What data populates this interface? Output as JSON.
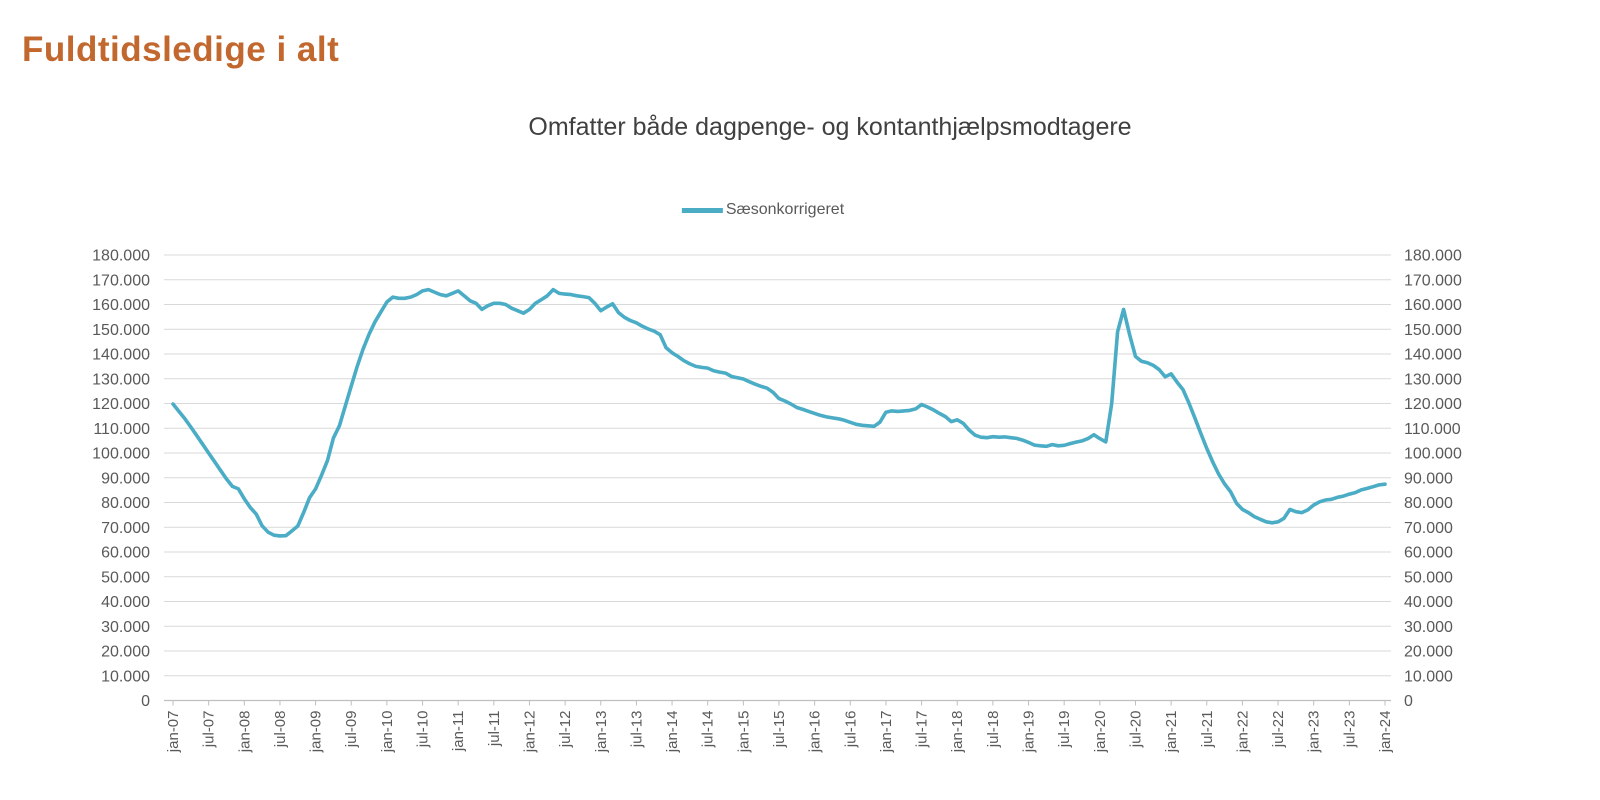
{
  "page": {
    "title": "Fuldtidsledige i alt"
  },
  "legend": {
    "label": "Sæsonkorrigeret"
  },
  "colors": {
    "title": "#C2672D",
    "subtitle": "#404040",
    "axis_text": "#595959",
    "gridline": "#D9D9D9",
    "axis_line": "#BFBFBF",
    "series_line": "#4BACC6"
  },
  "chart_data": {
    "type": "line",
    "title": "Fuldtidsledige i alt",
    "subtitle": "Omfatter både dagpenge- og kontanthjælpsmodtagere",
    "legend_position": "top-center",
    "grid": true,
    "x_unit": "month",
    "x_start": "jan-07",
    "x_end": "jan-24",
    "x_tick_labels": [
      "jan-07",
      "jul-07",
      "jan-08",
      "jul-08",
      "jan-09",
      "jul-09",
      "jan-10",
      "jul-10",
      "jan-11",
      "jul-11",
      "jan-12",
      "jul-12",
      "jan-13",
      "jul-13",
      "jan-14",
      "jul-14",
      "jan-15",
      "jul-15",
      "jan-16",
      "jul-16",
      "jan-17",
      "jul-17",
      "jan-18",
      "jul-18",
      "jan-19",
      "jul-19",
      "jan-20",
      "jul-20",
      "jan-21",
      "jul-21",
      "jan-22",
      "jul-22",
      "jan-23",
      "jul-23",
      "jan-24"
    ],
    "x_tick_interval_months": 6,
    "y_axis": {
      "min": 0,
      "max": 180000,
      "step": 10000,
      "sides": [
        "left",
        "right"
      ],
      "tick_labels": [
        "0",
        "10.000",
        "20.000",
        "30.000",
        "40.000",
        "50.000",
        "60.000",
        "70.000",
        "80.000",
        "90.000",
        "100.000",
        "110.000",
        "120.000",
        "130.000",
        "140.000",
        "150.000",
        "160.000",
        "170.000",
        "180.000"
      ]
    },
    "series": [
      {
        "name": "Sæsonkorrigeret",
        "color": "#4BACC6",
        "frequency": "monthly",
        "start": "2007-01",
        "end": "2024-01",
        "values": [
          119800,
          116800,
          113800,
          110500,
          107000,
          103500,
          100000,
          96500,
          93000,
          89500,
          86500,
          85500,
          81500,
          78000,
          75300,
          70600,
          68000,
          66800,
          66500,
          66600,
          68500,
          70500,
          76000,
          82000,
          85500,
          91000,
          97000,
          106000,
          111000,
          119000,
          127000,
          135000,
          142000,
          148000,
          153000,
          157000,
          161000,
          163000,
          162500,
          162500,
          163000,
          164000,
          165500,
          166000,
          165000,
          164000,
          163500,
          164500,
          165500,
          163500,
          161500,
          160500,
          158000,
          159500,
          160500,
          160500,
          160000,
          158500,
          157500,
          156500,
          158000,
          160500,
          162000,
          163500,
          166000,
          164500,
          164200,
          164000,
          163500,
          163200,
          162800,
          160500,
          157500,
          159000,
          160300,
          156700,
          154800,
          153500,
          152600,
          151200,
          150100,
          149200,
          147800,
          142500,
          140500,
          139000,
          137300,
          136000,
          135000,
          134600,
          134300,
          133200,
          132700,
          132300,
          130900,
          130400,
          129900,
          128800,
          127800,
          126900,
          126200,
          124500,
          122000,
          121000,
          119800,
          118400,
          117600,
          116800,
          116000,
          115200,
          114600,
          114200,
          113800,
          113200,
          112400,
          111600,
          111200,
          111000,
          110800,
          112500,
          116500,
          117000,
          116800,
          117000,
          117200,
          117800,
          119600,
          118600,
          117400,
          116000,
          114700,
          112700,
          113400,
          112000,
          109300,
          107200,
          106400,
          106200,
          106600,
          106400,
          106500,
          106200,
          105900,
          105200,
          104300,
          103200,
          102900,
          102700,
          103400,
          102900,
          103100,
          103800,
          104400,
          104900,
          105800,
          107400,
          105800,
          104500,
          120000,
          149000,
          158000,
          148000,
          139000,
          137100,
          136500,
          135400,
          133700,
          130800,
          132000,
          128600,
          125600,
          120200,
          114100,
          107900,
          101800,
          96400,
          91500,
          87500,
          84400,
          79700,
          77200,
          75900,
          74300,
          73200,
          72200,
          71800,
          72200,
          73600,
          77200,
          76300,
          75900,
          77000,
          79000,
          80300,
          81000,
          81300,
          82100,
          82600,
          83400,
          84000,
          85100,
          85700,
          86400,
          87100,
          87400
        ]
      }
    ]
  }
}
